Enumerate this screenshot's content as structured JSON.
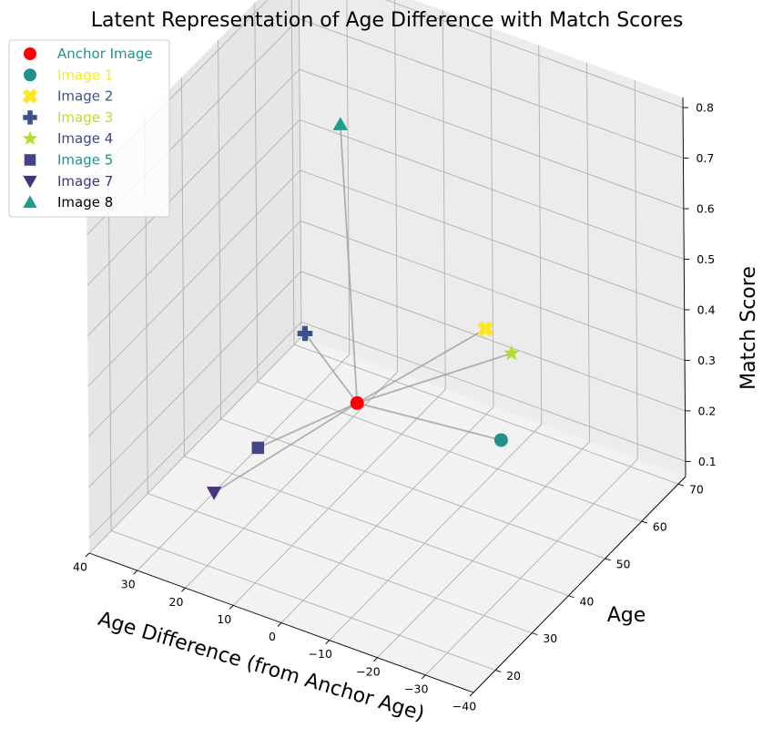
{
  "chart_data": {
    "type": "scatter",
    "title": "Latent Representation of Age Difference with Match Scores",
    "xlabel": "Age Difference (from Anchor Age)",
    "ylabel": "Age",
    "zlabel": "Match Score",
    "xlim": [
      -40,
      40
    ],
    "ylim": [
      14,
      72
    ],
    "zlim": [
      0.1,
      0.82
    ],
    "xticks": [
      "−40",
      "−30",
      "−20",
      "−10",
      "0",
      "10",
      "20",
      "30",
      "40"
    ],
    "yticks": [
      "20",
      "30",
      "40",
      "50",
      "60",
      "70"
    ],
    "zticks": [
      "0.1",
      "0.2",
      "0.3",
      "0.4",
      "0.5",
      "0.6",
      "0.7",
      "0.8"
    ],
    "grid": true,
    "legend_position": "top-left",
    "anchor_label": "Anchor Image",
    "series": [
      {
        "name": "Anchor Image",
        "color": "#ff0000",
        "marker": "circle",
        "label_color": "#21918c",
        "x": 0,
        "y": 35,
        "z": 0.35
      },
      {
        "name": "Image 1",
        "color": "#21918c",
        "marker": "circle",
        "label_color": "#fde725",
        "x": -20,
        "y": 48,
        "z": 0.25
      },
      {
        "name": "Image 2",
        "color": "#fde725",
        "marker": "x-filled",
        "label_color": "#3b528b",
        "x": -40,
        "y": 18,
        "z": 0.76
      },
      {
        "name": "Image 3",
        "color": "#3b528b",
        "marker": "plus-filled",
        "label_color": "#b5de2b",
        "x": 30,
        "y": 60,
        "z": 0.2
      },
      {
        "name": "Image 4",
        "color": "#b5de2b",
        "marker": "star",
        "label_color": "#414487",
        "x": -40,
        "y": 25,
        "z": 0.66
      },
      {
        "name": "Image 5",
        "color": "#414487",
        "marker": "square",
        "label_color": "#21918c",
        "x": 20,
        "y": 34,
        "z": 0.2
      },
      {
        "name": "Image 7",
        "color": "#46327e",
        "marker": "triangle-down",
        "label_color": "#46327e",
        "x": 20,
        "y": 22,
        "z": 0.2
      },
      {
        "name": "Image 8",
        "color": "#1f9e89",
        "marker": "triangle-up",
        "label_color": "#000000",
        "x": 30,
        "y": 70,
        "z": 0.54
      }
    ]
  }
}
